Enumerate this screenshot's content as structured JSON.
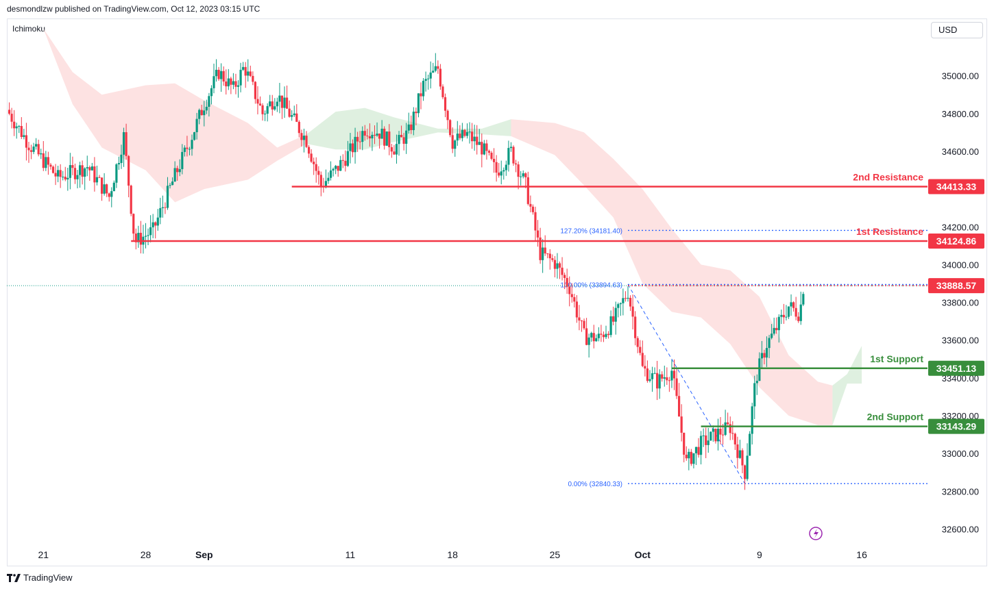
{
  "header": {
    "published_by": "desmondlzw published on TradingView.com, Oct 12, 2023 03:15 UTC"
  },
  "indicator": {
    "name": "Ichimoku"
  },
  "currency": {
    "label": "USD"
  },
  "footer": {
    "brand": "TradingView"
  },
  "colors": {
    "bull": "#089981",
    "bear": "#f23645",
    "resistance": "#f23645",
    "support": "#388e3c",
    "cloud_bear": "#fde2e2",
    "cloud_bull": "#dff0e0",
    "fib": "#2962ff"
  },
  "chart_data": {
    "type": "candlestick",
    "symbol_currency": "USD",
    "ylim": [
      32500,
      35300
    ],
    "y_ticks": [
      32600,
      32800,
      33000,
      33200,
      33400,
      33600,
      33800,
      34000,
      34200,
      34400,
      34600,
      34800,
      35000
    ],
    "y_tick_labels": [
      "32600.00",
      "32800.00",
      "33000.00",
      "33200.00",
      "33400.00",
      "33600.00",
      "33800.00",
      "34000.00",
      "34200.00",
      "34400.00",
      "34600.00",
      "34800.00",
      "35000.00"
    ],
    "x_ticks": [
      {
        "label": "21",
        "date": "2023-08-21",
        "bold": false
      },
      {
        "label": "28",
        "date": "2023-08-28",
        "bold": false
      },
      {
        "label": "Sep",
        "date": "2023-09-01",
        "bold": true
      },
      {
        "label": "11",
        "date": "2023-09-11",
        "bold": false
      },
      {
        "label": "18",
        "date": "2023-09-18",
        "bold": false
      },
      {
        "label": "25",
        "date": "2023-09-25",
        "bold": false
      },
      {
        "label": "Oct",
        "date": "2023-10-01",
        "bold": true
      },
      {
        "label": "9",
        "date": "2023-10-09",
        "bold": false
      },
      {
        "label": "16",
        "date": "2023-10-16",
        "bold": false
      }
    ],
    "x_range": [
      "2023-08-18T12:00",
      "2023-10-20T12:00"
    ],
    "levels": [
      {
        "label": "2nd Resistance",
        "value": 34413.33,
        "value_label": "34413.33",
        "kind": "resistance",
        "from": "2023-09-07"
      },
      {
        "label": "1st Resistance",
        "value": 34124.86,
        "value_label": "34124.86",
        "kind": "resistance",
        "from": "2023-08-27"
      },
      {
        "label": "1st Support",
        "value": 33451.13,
        "value_label": "33451.13",
        "kind": "support",
        "from": "2023-10-03"
      },
      {
        "label": "2nd Support",
        "value": 33143.29,
        "value_label": "33143.29",
        "kind": "support",
        "from": "2023-10-05"
      }
    ],
    "current_price": {
      "value": 33888.57,
      "label": "33888.57"
    },
    "fibonacci": [
      {
        "label": "127.20% (34181.40)",
        "value": 34181.4
      },
      {
        "label": "100.00% (33894.63)",
        "value": 33894.63
      },
      {
        "label": "0.00% (32840.33)",
        "value": 32840.33
      }
    ],
    "fib_anchor": {
      "from_date": "2023-09-30",
      "from_value": 33894.63,
      "to_date": "2023-10-08",
      "to_value": 32840.33
    },
    "close_path": [
      [
        "2023-08-18T12:00",
        34820
      ],
      [
        "2023-08-20",
        34640
      ],
      [
        "2023-08-22",
        34460
      ],
      [
        "2023-08-24",
        34520
      ],
      [
        "2023-08-25T12:00",
        34360
      ],
      [
        "2023-08-26T12:00",
        34680
      ],
      [
        "2023-08-27T06:00",
        34120
      ],
      [
        "2023-08-28T12:00",
        34180
      ],
      [
        "2023-08-30",
        34470
      ],
      [
        "2023-08-31",
        34650
      ],
      [
        "2023-09-01",
        34850
      ],
      [
        "2023-09-02",
        35020
      ],
      [
        "2023-09-03",
        34930
      ],
      [
        "2023-09-03T18:00",
        35050
      ],
      [
        "2023-09-05",
        34800
      ],
      [
        "2023-09-06",
        34900
      ],
      [
        "2023-09-07",
        34780
      ],
      [
        "2023-09-08",
        34660
      ],
      [
        "2023-09-09",
        34420
      ],
      [
        "2023-09-10",
        34500
      ],
      [
        "2023-09-11",
        34600
      ],
      [
        "2023-09-12",
        34720
      ],
      [
        "2023-09-13",
        34700
      ],
      [
        "2023-09-14",
        34620
      ],
      [
        "2023-09-15",
        34700
      ],
      [
        "2023-09-16",
        34950
      ],
      [
        "2023-09-17",
        35040
      ],
      [
        "2023-09-18",
        34650
      ],
      [
        "2023-09-19",
        34690
      ],
      [
        "2023-09-20",
        34620
      ],
      [
        "2023-09-21",
        34490
      ],
      [
        "2023-09-22",
        34600
      ],
      [
        "2023-09-23",
        34420
      ],
      [
        "2023-09-24",
        34060
      ],
      [
        "2023-09-25",
        34010
      ],
      [
        "2023-09-26",
        33880
      ],
      [
        "2023-09-27",
        33620
      ],
      [
        "2023-09-28",
        33610
      ],
      [
        "2023-09-29",
        33700
      ],
      [
        "2023-09-30",
        33860
      ],
      [
        "2023-10-01",
        33450
      ],
      [
        "2023-10-02",
        33380
      ],
      [
        "2023-10-03",
        33440
      ],
      [
        "2023-10-04",
        32950
      ],
      [
        "2023-10-05",
        33050
      ],
      [
        "2023-10-06",
        33100
      ],
      [
        "2023-10-07",
        33140
      ],
      [
        "2023-10-08",
        32900
      ],
      [
        "2023-10-08T18:00",
        33400
      ],
      [
        "2023-10-09T12:00",
        33580
      ],
      [
        "2023-10-10",
        33640
      ],
      [
        "2023-10-11",
        33780
      ],
      [
        "2023-10-11T18:00",
        33740
      ],
      [
        "2023-10-12",
        33880
      ]
    ],
    "cloud_upper": [
      [
        "2023-08-19",
        35300
      ],
      [
        "2023-08-21",
        35250
      ],
      [
        "2023-08-23",
        35020
      ],
      [
        "2023-08-25",
        34900
      ],
      [
        "2023-08-28",
        34950
      ],
      [
        "2023-08-30",
        34960
      ],
      [
        "2023-09-01",
        34870
      ],
      [
        "2023-09-04",
        34750
      ],
      [
        "2023-09-06",
        34620
      ],
      [
        "2023-09-08",
        34690
      ],
      [
        "2023-09-10",
        34810
      ],
      [
        "2023-09-12",
        34830
      ],
      [
        "2023-09-14",
        34780
      ],
      [
        "2023-09-17",
        34720
      ],
      [
        "2023-09-20",
        34720
      ],
      [
        "2023-09-22",
        34770
      ],
      [
        "2023-09-25",
        34750
      ],
      [
        "2023-09-27",
        34700
      ],
      [
        "2023-09-29",
        34560
      ],
      [
        "2023-10-01",
        34400
      ],
      [
        "2023-10-03",
        34190
      ],
      [
        "2023-10-05",
        34000
      ],
      [
        "2023-10-07",
        33970
      ],
      [
        "2023-10-09",
        33830
      ],
      [
        "2023-10-11",
        33520
      ],
      [
        "2023-10-13",
        33380
      ],
      [
        "2023-10-14",
        33360
      ],
      [
        "2023-10-15",
        33420
      ],
      [
        "2023-10-16",
        33570
      ]
    ],
    "cloud_lower": [
      [
        "2023-08-19",
        35300
      ],
      [
        "2023-08-21",
        35250
      ],
      [
        "2023-08-23",
        34850
      ],
      [
        "2023-08-25",
        34620
      ],
      [
        "2023-08-28",
        34500
      ],
      [
        "2023-08-30",
        34330
      ],
      [
        "2023-09-01",
        34400
      ],
      [
        "2023-09-04",
        34450
      ],
      [
        "2023-09-06",
        34550
      ],
      [
        "2023-09-08",
        34640
      ],
      [
        "2023-09-10",
        34610
      ],
      [
        "2023-09-12",
        34610
      ],
      [
        "2023-09-14",
        34650
      ],
      [
        "2023-09-17",
        34700
      ],
      [
        "2023-09-20",
        34690
      ],
      [
        "2023-09-22",
        34680
      ],
      [
        "2023-09-25",
        34580
      ],
      [
        "2023-09-27",
        34420
      ],
      [
        "2023-09-29",
        34250
      ],
      [
        "2023-10-01",
        33900
      ],
      [
        "2023-10-03",
        33750
      ],
      [
        "2023-10-05",
        33720
      ],
      [
        "2023-10-07",
        33580
      ],
      [
        "2023-10-09",
        33350
      ],
      [
        "2023-10-11",
        33200
      ],
      [
        "2023-10-13",
        33150
      ],
      [
        "2023-10-14",
        33150
      ],
      [
        "2023-10-15",
        33370
      ],
      [
        "2023-10-16",
        33370
      ]
    ]
  }
}
